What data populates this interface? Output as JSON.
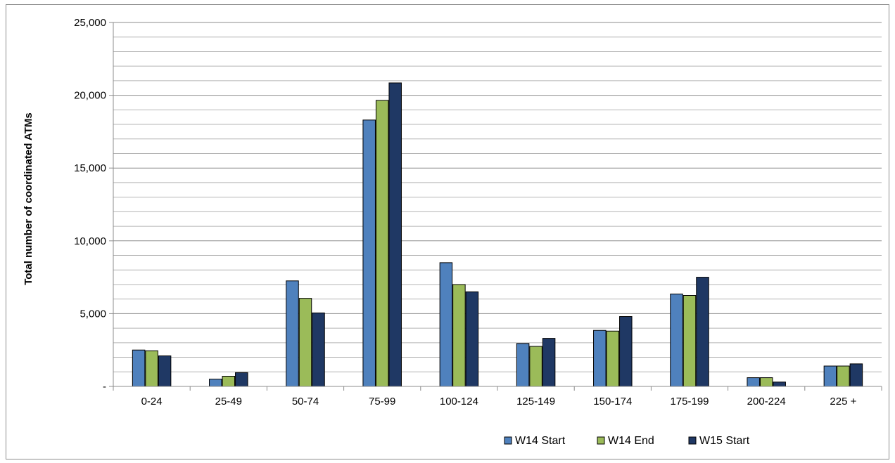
{
  "chart_data": {
    "type": "bar",
    "title": "",
    "xlabel": "",
    "ylabel": "Total number of coordinated ATMs",
    "categories": [
      "0-24",
      "25-49",
      "50-74",
      "75-99",
      "100-124",
      "125-149",
      "150-174",
      "175-199",
      "200-224",
      "225 +"
    ],
    "series": [
      {
        "name": "W14 Start",
        "color": "#4f81bd",
        "values": [
          2500,
          500,
          7250,
          18300,
          8500,
          2950,
          3850,
          6350,
          600,
          1400
        ]
      },
      {
        "name": "W14 End",
        "color": "#9bbb59",
        "values": [
          2450,
          700,
          6050,
          19650,
          7000,
          2750,
          3800,
          6250,
          600,
          1400
        ]
      },
      {
        "name": "W15 Start",
        "color": "#1f3864",
        "values": [
          2100,
          950,
          5050,
          20850,
          6500,
          3300,
          4800,
          7500,
          300,
          1550
        ]
      }
    ],
    "ylim": [
      0,
      25000
    ],
    "yticks": [
      0,
      5000,
      10000,
      15000,
      20000,
      25000
    ],
    "ytick_labels": [
      "-",
      "5,000",
      "10,000",
      "15,000",
      "20,000",
      "25,000"
    ],
    "grid": true,
    "minor_gridlines": 1000,
    "legend_position": "bottom-right"
  }
}
